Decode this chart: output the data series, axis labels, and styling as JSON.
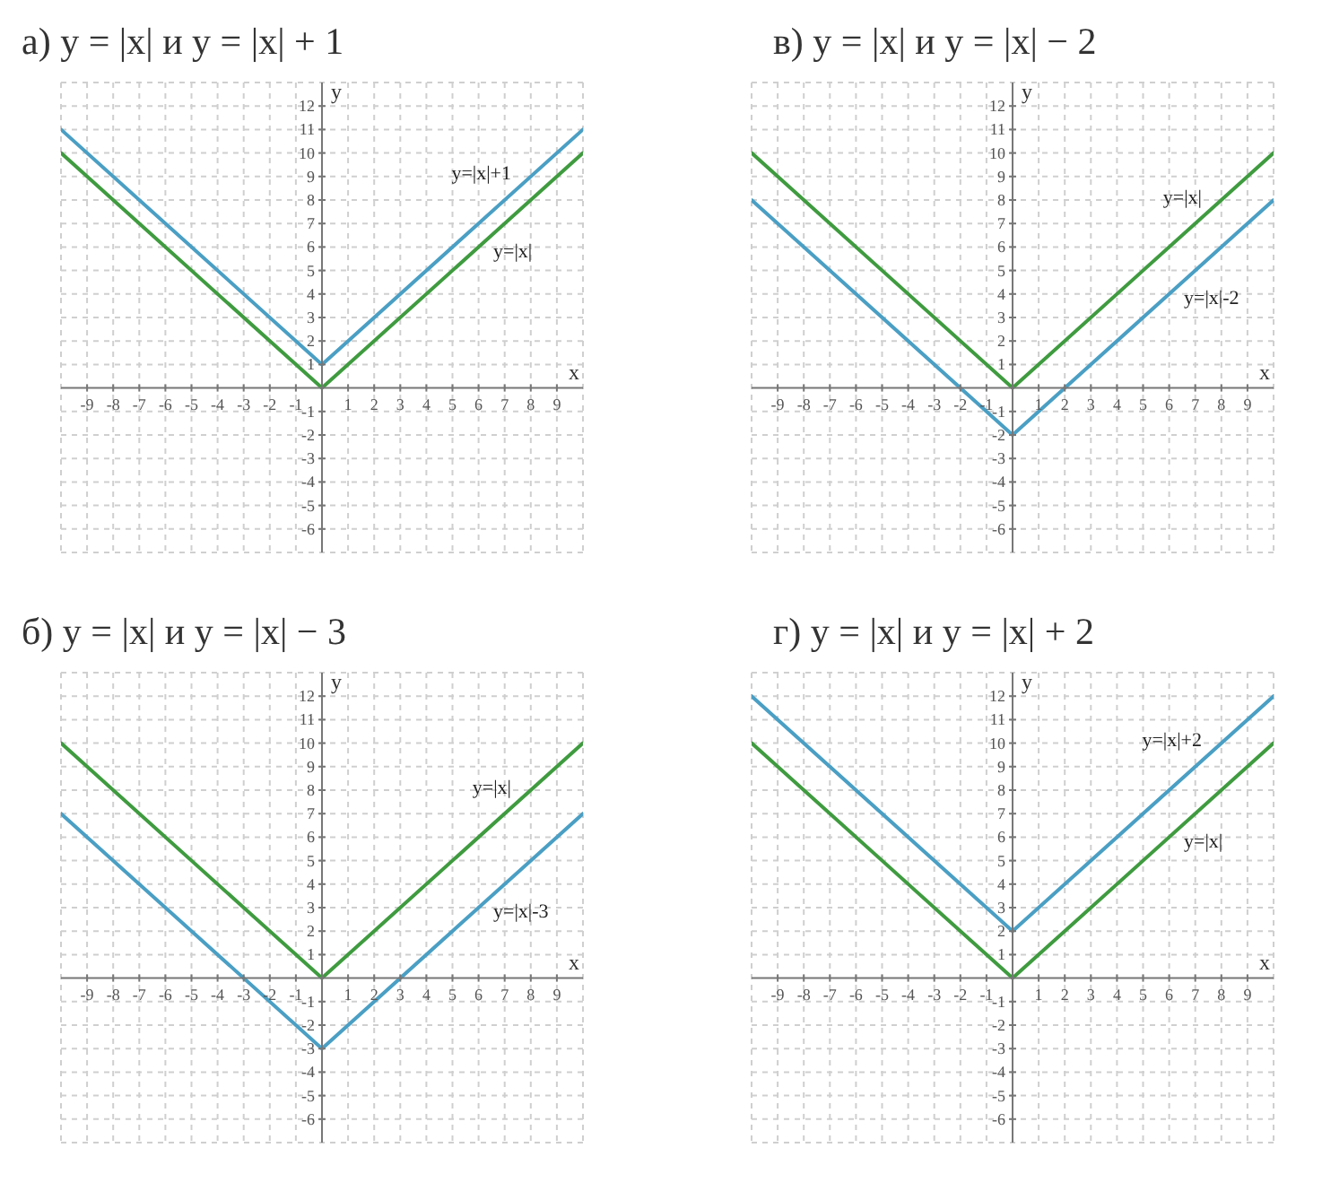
{
  "chart_data": [
    {
      "type": "line",
      "title": "а) y = |x| и y = |x| + 1",
      "xlabel": "x",
      "ylabel": "y",
      "x": [
        -10,
        0,
        10
      ],
      "series": [
        {
          "name": "y=|x|",
          "color": "#3f9b3f",
          "values": [
            10,
            0,
            10
          ]
        },
        {
          "name": "y=|x|+1",
          "color": "#4a9fc4",
          "values": [
            11,
            1,
            11
          ]
        }
      ],
      "xlim": [
        -10,
        10
      ],
      "ylim": [
        -7,
        13
      ],
      "xticks": [
        -9,
        -8,
        -7,
        -6,
        -5,
        -4,
        -3,
        -2,
        -1,
        1,
        2,
        3,
        4,
        5,
        6,
        7,
        8,
        9
      ],
      "yticks": [
        -6,
        -5,
        -4,
        -3,
        -2,
        -1,
        1,
        2,
        3,
        4,
        5,
        6,
        7,
        8,
        9,
        10,
        11,
        12
      ],
      "grid": true
    },
    {
      "type": "line",
      "title": "в) y = |x| и y = |x| − 2",
      "xlabel": "x",
      "ylabel": "y",
      "x": [
        -10,
        0,
        10
      ],
      "series": [
        {
          "name": "y=|x|",
          "color": "#3f9b3f",
          "values": [
            10,
            0,
            10
          ]
        },
        {
          "name": "y=|x|-2",
          "color": "#4a9fc4",
          "values": [
            8,
            -2,
            8
          ]
        }
      ],
      "xlim": [
        -10,
        10
      ],
      "ylim": [
        -7,
        13
      ],
      "xticks": [
        -9,
        -8,
        -7,
        -6,
        -5,
        -4,
        -3,
        -2,
        -1,
        1,
        2,
        3,
        4,
        5,
        6,
        7,
        8,
        9
      ],
      "yticks": [
        -6,
        -5,
        -4,
        -3,
        -2,
        -1,
        1,
        2,
        3,
        4,
        5,
        6,
        7,
        8,
        9,
        10,
        11,
        12
      ],
      "grid": true
    },
    {
      "type": "line",
      "title": "б) y = |x| и y = |x| − 3",
      "xlabel": "x",
      "ylabel": "y",
      "x": [
        -10,
        0,
        10
      ],
      "series": [
        {
          "name": "y=|x|",
          "color": "#3f9b3f",
          "values": [
            10,
            0,
            10
          ]
        },
        {
          "name": "y=|x|-3",
          "color": "#4a9fc4",
          "values": [
            7,
            -3,
            7
          ]
        }
      ],
      "xlim": [
        -10,
        10
      ],
      "ylim": [
        -7,
        13
      ],
      "xticks": [
        -9,
        -8,
        -7,
        -6,
        -5,
        -4,
        -3,
        -2,
        -1,
        1,
        2,
        3,
        4,
        5,
        6,
        7,
        8,
        9
      ],
      "yticks": [
        -6,
        -5,
        -4,
        -3,
        -2,
        -1,
        1,
        2,
        3,
        4,
        5,
        6,
        7,
        8,
        9,
        10,
        11,
        12
      ],
      "grid": true
    },
    {
      "type": "line",
      "title": "г) y = |x| и y = |x| + 2",
      "xlabel": "x",
      "ylabel": "y",
      "x": [
        -10,
        0,
        10
      ],
      "series": [
        {
          "name": "y=|x|",
          "color": "#3f9b3f",
          "values": [
            10,
            0,
            10
          ]
        },
        {
          "name": "y=|x|+2",
          "color": "#4a9fc4",
          "values": [
            12,
            2,
            12
          ]
        }
      ],
      "xlim": [
        -10,
        10
      ],
      "ylim": [
        -7,
        13
      ],
      "xticks": [
        -9,
        -8,
        -7,
        -6,
        -5,
        -4,
        -3,
        -2,
        -1,
        1,
        2,
        3,
        4,
        5,
        6,
        7,
        8,
        9
      ],
      "yticks": [
        -6,
        -5,
        -4,
        -3,
        -2,
        -1,
        1,
        2,
        3,
        4,
        5,
        6,
        7,
        8,
        9,
        10,
        11,
        12
      ],
      "grid": true
    }
  ]
}
